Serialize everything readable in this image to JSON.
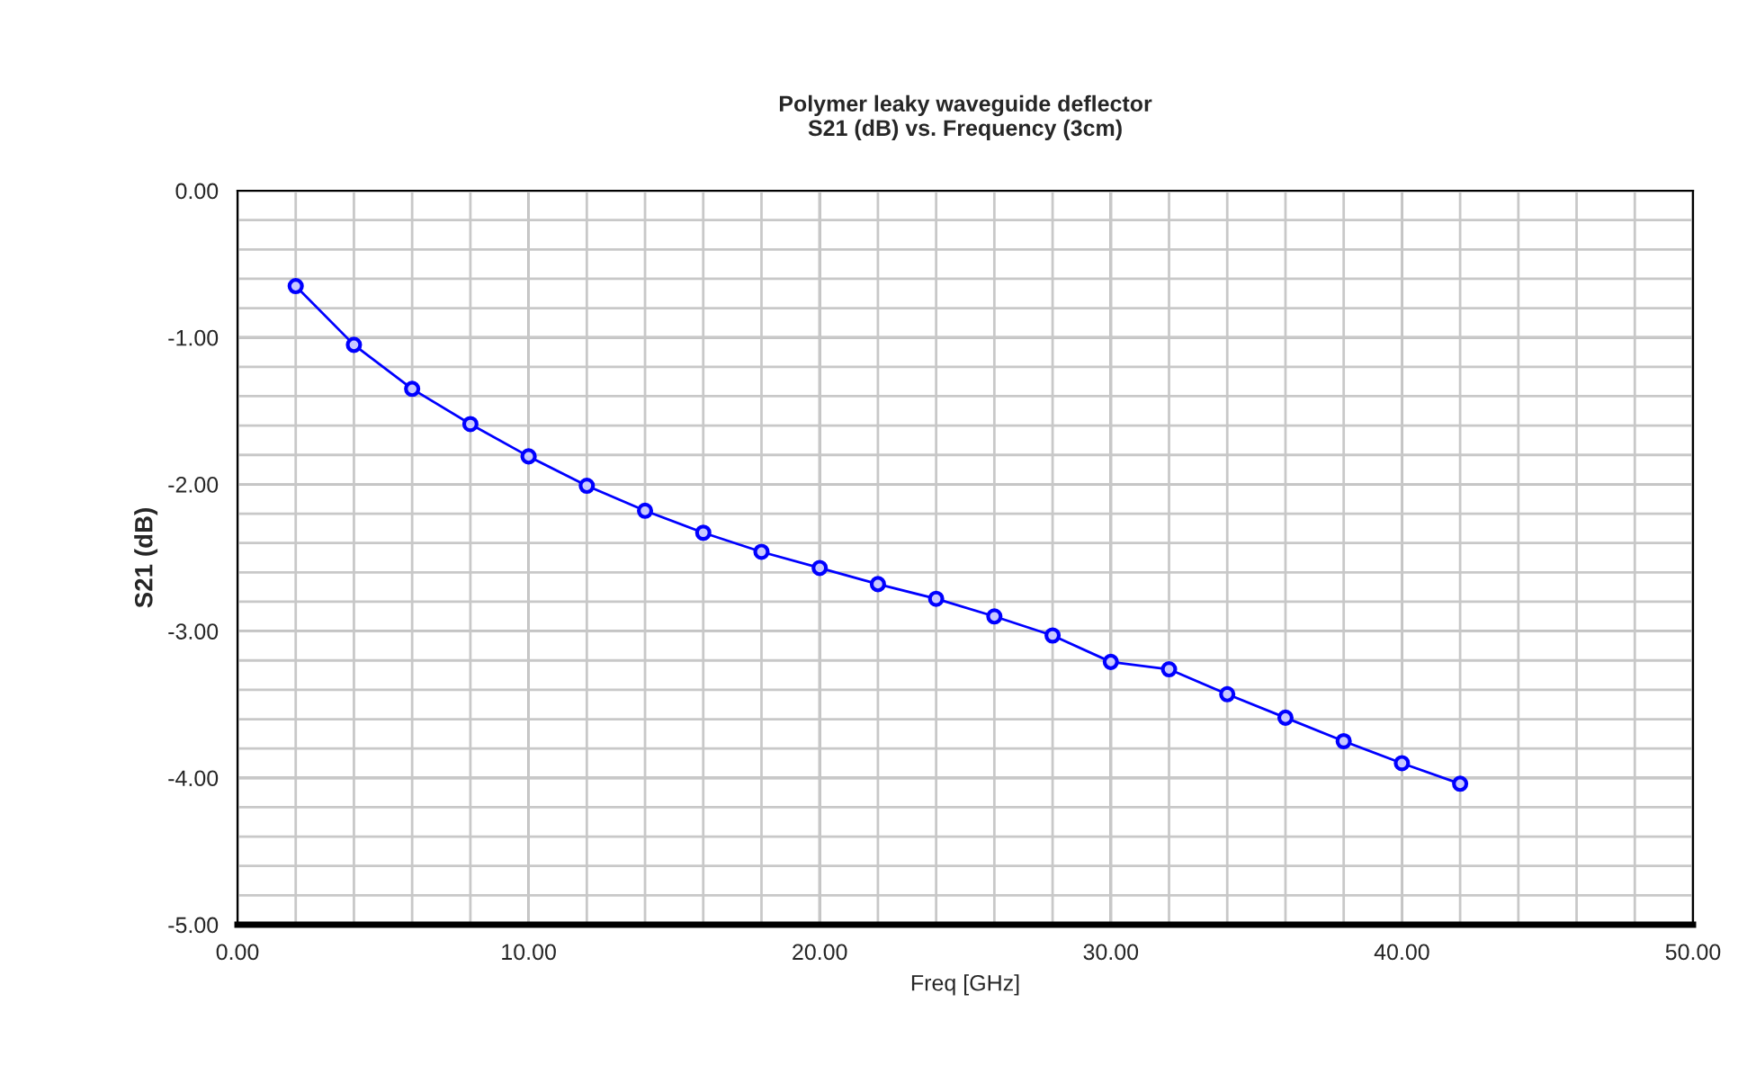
{
  "chart_data": {
    "type": "line",
    "title": "Polymer leaky waveguide deflector\nS21 (dB) vs. Frequency (3cm)",
    "xlabel": "Freq [GHz]",
    "ylabel": "S21 (dB)",
    "x": [
      2,
      4,
      6,
      8,
      10,
      12,
      14,
      16,
      18,
      20,
      22,
      24,
      26,
      28,
      30,
      32,
      34,
      36,
      38,
      40,
      42
    ],
    "series": [
      {
        "color": "#0000ff",
        "values": [
          -0.65,
          -1.05,
          -1.35,
          -1.59,
          -1.81,
          -2.01,
          -2.18,
          -2.33,
          -2.46,
          -2.57,
          -2.68,
          -2.78,
          -2.9,
          -3.03,
          -3.21,
          -3.26,
          -3.43,
          -3.59,
          -3.75,
          -3.9,
          -4.04
        ]
      }
    ],
    "xlim": [
      0,
      50
    ],
    "ylim": [
      -5,
      0
    ],
    "xticks": [
      {
        "value": 0,
        "label": "0.00"
      },
      {
        "value": 2,
        "label": null
      },
      {
        "value": 4,
        "label": null
      },
      {
        "value": 6,
        "label": null
      },
      {
        "value": 8,
        "label": null
      },
      {
        "value": 10,
        "label": "10.00"
      },
      {
        "value": 12,
        "label": null
      },
      {
        "value": 14,
        "label": null
      },
      {
        "value": 16,
        "label": null
      },
      {
        "value": 18,
        "label": null
      },
      {
        "value": 20,
        "label": "20.00"
      },
      {
        "value": 22,
        "label": null
      },
      {
        "value": 24,
        "label": null
      },
      {
        "value": 26,
        "label": null
      },
      {
        "value": 28,
        "label": null
      },
      {
        "value": 30,
        "label": "30.00"
      },
      {
        "value": 32,
        "label": null
      },
      {
        "value": 34,
        "label": null
      },
      {
        "value": 36,
        "label": null
      },
      {
        "value": 38,
        "label": null
      },
      {
        "value": 40,
        "label": "40.00"
      },
      {
        "value": 42,
        "label": null
      },
      {
        "value": 44,
        "label": null
      },
      {
        "value": 46,
        "label": null
      },
      {
        "value": 48,
        "label": null
      },
      {
        "value": 50,
        "label": "50.00"
      }
    ],
    "yticks": [
      {
        "value": -5,
        "label": "-5.00"
      },
      {
        "value": -4.8,
        "label": null
      },
      {
        "value": -4.6,
        "label": null
      },
      {
        "value": -4.4,
        "label": null
      },
      {
        "value": -4.2,
        "label": null
      },
      {
        "value": -4,
        "label": "-4.00"
      },
      {
        "value": -3.8,
        "label": null
      },
      {
        "value": -3.6,
        "label": null
      },
      {
        "value": -3.4,
        "label": null
      },
      {
        "value": -3.2,
        "label": null
      },
      {
        "value": -3,
        "label": "-3.00"
      },
      {
        "value": -2.8,
        "label": null
      },
      {
        "value": -2.6,
        "label": null
      },
      {
        "value": -2.4,
        "label": null
      },
      {
        "value": -2.2,
        "label": null
      },
      {
        "value": -2,
        "label": "-2.00"
      },
      {
        "value": -1.8,
        "label": null
      },
      {
        "value": -1.6,
        "label": null
      },
      {
        "value": -1.4,
        "label": null
      },
      {
        "value": -1.2,
        "label": null
      },
      {
        "value": -1,
        "label": "-1.00"
      },
      {
        "value": -0.8,
        "label": null
      },
      {
        "value": -0.6,
        "label": null
      },
      {
        "value": -0.4,
        "label": null
      },
      {
        "value": -0.2,
        "label": null
      },
      {
        "value": 0,
        "label": "0.00"
      }
    ],
    "grid": true,
    "marker": "circle",
    "line_style": "solid",
    "legend": false
  }
}
